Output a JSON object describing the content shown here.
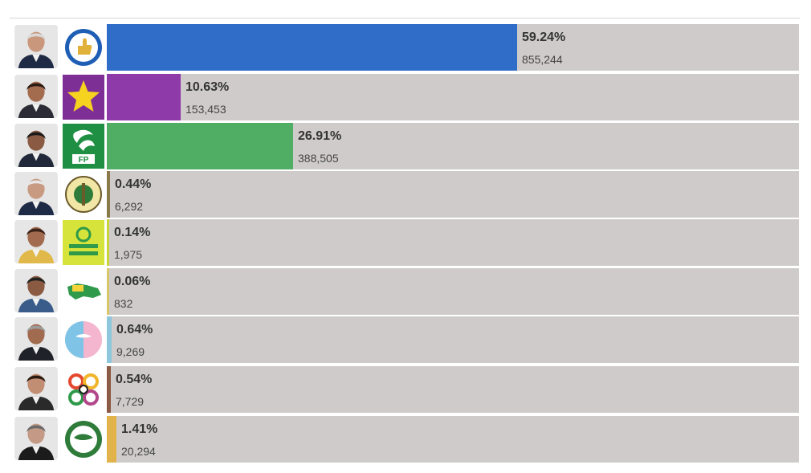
{
  "chart_data": {
    "type": "bar",
    "orientation": "horizontal",
    "series": [
      {
        "values": [
          59.24,
          10.63,
          26.91,
          0.44,
          0.14,
          0.06,
          0.64,
          0.54,
          1.41
        ]
      }
    ],
    "percent_labels": [
      "59.24%",
      "10.63%",
      "26.91%",
      "0.44%",
      "0.14%",
      "0.06%",
      "0.64%",
      "0.54%",
      "1.41%"
    ],
    "vote_labels": [
      "855,244",
      "153,453",
      "388,505",
      "6,292",
      "1,975",
      "832",
      "9,269",
      "7,729",
      "20,294"
    ],
    "votes": [
      855244,
      153453,
      388505,
      6292,
      1975,
      832,
      9269,
      7729,
      20294
    ],
    "xlim": [
      0,
      100
    ],
    "grid": false,
    "legend": "none"
  },
  "rows": [
    {
      "bar_color": "#2f6dc8",
      "logo_icon": "prm-thumbs-up-seal-icon",
      "logo_bg": "#ffffff",
      "photo_icon": "candidate-photo-icon",
      "suit": "#1f2a44",
      "skin": "#c9987c",
      "hair": "#d9d9d9"
    },
    {
      "bar_color": "#8e3aa9",
      "logo_icon": "pld-yellow-star-icon",
      "logo_bg": "#7d2f96",
      "photo_icon": "candidate-photo-icon",
      "suit": "#2b2b35",
      "skin": "#a46c4e",
      "hair": "#2a1b15"
    },
    {
      "bar_color": "#4fae63",
      "logo_icon": "fp-green-logo-icon",
      "logo_bg": "#1f8f43",
      "photo_icon": "candidate-photo-icon",
      "suit": "#20283a",
      "skin": "#8a5a43",
      "hair": "#1b1b1b"
    },
    {
      "bar_color": "#8a7a4a",
      "logo_icon": "party-circular-seal-icon",
      "logo_bg": "#ffffff",
      "photo_icon": "candidate-photo-icon",
      "suit": "#1e2b46",
      "skin": "#c89a82",
      "hair": "#e6e6e6"
    },
    {
      "bar_color": "#c8d43a",
      "logo_icon": "frente-amplio-logo-icon",
      "logo_bg": "#d6e33a",
      "photo_icon": "candidate-photo-icon",
      "suit": "#e0b94a",
      "skin": "#a26b4f",
      "hair": "#3a2318"
    },
    {
      "bar_color": "#d9c86a",
      "logo_icon": "ppt-green-map-logo-icon",
      "logo_bg": "#ffffff",
      "photo_icon": "candidate-photo-icon",
      "suit": "#3a5c8a",
      "skin": "#8a5a43",
      "hair": "#222222"
    },
    {
      "bar_color": "#8ec7dc",
      "logo_icon": "gensi-dove-logo-icon",
      "logo_bg": "#ffffff",
      "photo_icon": "candidate-photo-icon",
      "suit": "#20222a",
      "skin": "#a16b50",
      "hair": "#9c9c9c"
    },
    {
      "bar_color": "#8a5a44",
      "logo_icon": "colorful-rings-logo-icon",
      "logo_bg": "#ffffff",
      "photo_icon": "candidate-photo-icon",
      "suit": "#2a2a2a",
      "skin": "#c28e73",
      "hair": "#2a1a12"
    },
    {
      "bar_color": "#e2b24b",
      "logo_icon": "globe-dove-seal-icon",
      "logo_bg": "#ffffff",
      "photo_icon": "candidate-photo-icon",
      "suit": "#1b1b1b",
      "skin": "#c49a86",
      "hair": "#6a6a6a"
    }
  ]
}
